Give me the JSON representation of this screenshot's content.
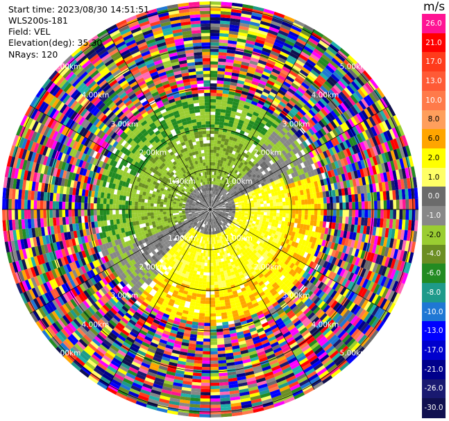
{
  "header": {
    "start_time": "Start time: 2023/08/30 14:51:51",
    "instrument": "WLS200s-181",
    "field": "Field: VEL",
    "elevation": "Elevation(deg): 35.30",
    "nrays": "NRays: 120"
  },
  "colorbar": {
    "unit": "m/s",
    "ticks": [
      "26.0",
      "21.0",
      "17.0",
      "13.0",
      "10.0",
      "8.0",
      "6.0",
      "2.0",
      "1.0",
      "0.0",
      "-1.0",
      "-2.0",
      "-4.0",
      "-6.0",
      "-8.0",
      "-10.0",
      "-13.0",
      "-17.0",
      "-21.0",
      "-26.0",
      "-30.0"
    ],
    "colors": [
      "#ff1493",
      "#ff0000",
      "#ff3b1c",
      "#ff5a36",
      "#ff7a4a",
      "#ff9f5c",
      "#ffa500",
      "#ffff00",
      "#ffff66",
      "#6b6b6b",
      "#888888",
      "#9acd32",
      "#6b8e23",
      "#228b22",
      "#1e9a8a",
      "#1f77d4",
      "#0000ff",
      "#0000cd",
      "#00008b",
      "#191970",
      "#101050"
    ]
  },
  "chart_data": {
    "type": "heatmap",
    "projection": "polar PPI",
    "field": "VEL",
    "nrays": 120,
    "range_rings_km": [
      "1.00km",
      "2.00km",
      "3.00km",
      "4.00km",
      "5.00km"
    ],
    "color_scale_ms": [
      26.0,
      21.0,
      17.0,
      13.0,
      10.0,
      8.0,
      6.0,
      2.0,
      1.0,
      0.0,
      -1.0,
      -2.0,
      -4.0,
      -6.0,
      -8.0,
      -10.0,
      -13.0,
      -17.0,
      -21.0,
      -26.0,
      -30.0
    ]
  }
}
